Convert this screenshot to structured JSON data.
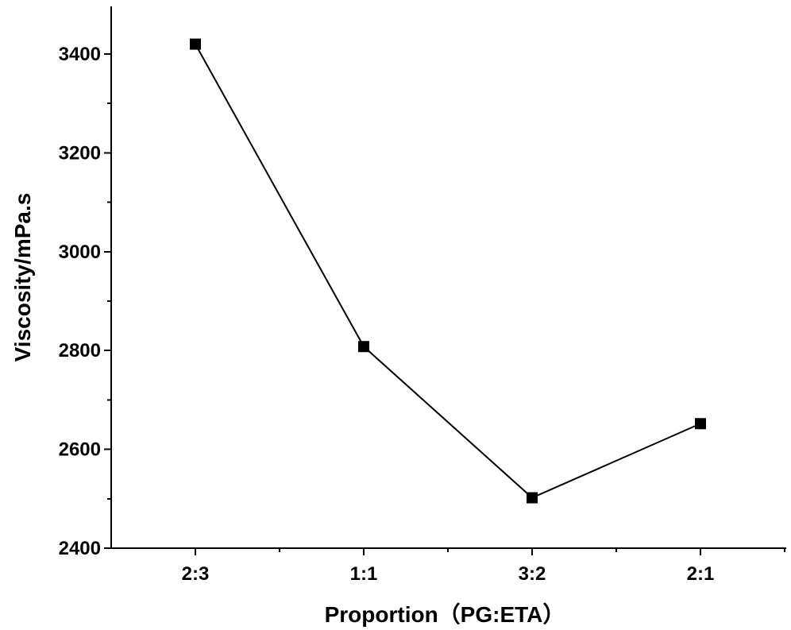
{
  "chart_data": {
    "type": "line",
    "title": "",
    "categories": [
      "2:3",
      "1:1",
      "3:2",
      "2:1"
    ],
    "series": [
      {
        "values": [
          3420,
          2808,
          2502,
          2652
        ]
      }
    ],
    "xlabel": "Proportion（PG:ETA）",
    "ylabel": "Viscosity/mPa.s",
    "ylim": [
      2400,
      3500
    ],
    "yticks": [
      2400,
      2600,
      2800,
      3000,
      3200,
      3400
    ],
    "ytick_labels": [
      "2400",
      "2600",
      "2800",
      "3000",
      "3200",
      "3400"
    ],
    "grid": false,
    "legend": "none",
    "marker": "square",
    "colors": {
      "line": "#000000",
      "marker": "#000000",
      "axes": "#000000"
    }
  }
}
